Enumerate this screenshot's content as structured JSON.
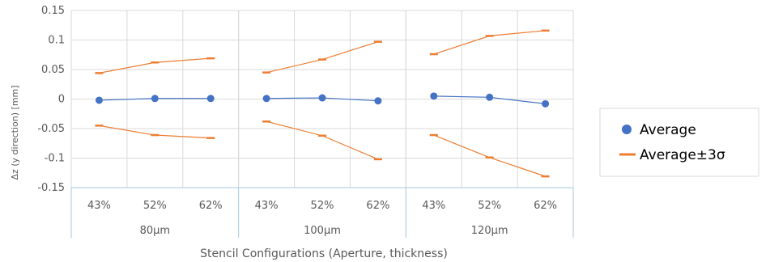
{
  "chart_data": {
    "type": "line",
    "title": "",
    "xlabel": "Stencil Configurations (Aperture, thickness)",
    "ylabel": "Δz (y direction) [mm]",
    "ylim": [
      -0.15,
      0.15
    ],
    "yticks": [
      "0.15",
      "0.1",
      "0.05",
      "0",
      "-0.05",
      "-0.1",
      "-0.15"
    ],
    "ytick_values": [
      0.15,
      0.1,
      0.05,
      0,
      -0.05,
      -0.1,
      -0.15
    ],
    "groups": [
      {
        "label": "80μm",
        "categories": [
          "43%",
          "52%",
          "62%"
        ]
      },
      {
        "label": "100μm",
        "categories": [
          "43%",
          "52%",
          "62%"
        ]
      },
      {
        "label": "120μm",
        "categories": [
          "43%",
          "52%",
          "62%"
        ]
      }
    ],
    "grid": true,
    "legend_position": "right",
    "series": [
      {
        "name": "Average",
        "marker": "circle",
        "color": "#4472C4",
        "values": [
          [
            -0.002,
            0.001,
            0.001
          ],
          [
            0.001,
            0.002,
            -0.003
          ],
          [
            0.005,
            0.003,
            -0.008
          ]
        ]
      },
      {
        "name": "Average±3σ",
        "marker": "dash",
        "color": "#ED7D31",
        "upper": [
          [
            0.044,
            0.062,
            0.069
          ],
          [
            0.045,
            0.067,
            0.097
          ],
          [
            0.076,
            0.107,
            0.116
          ]
        ],
        "lower": [
          [
            -0.045,
            -0.061,
            -0.066
          ],
          [
            -0.038,
            -0.062,
            -0.102
          ],
          [
            -0.061,
            -0.099,
            -0.131
          ]
        ]
      }
    ]
  },
  "legend": {
    "average_label": "Average",
    "band_label": "Average±3σ"
  }
}
